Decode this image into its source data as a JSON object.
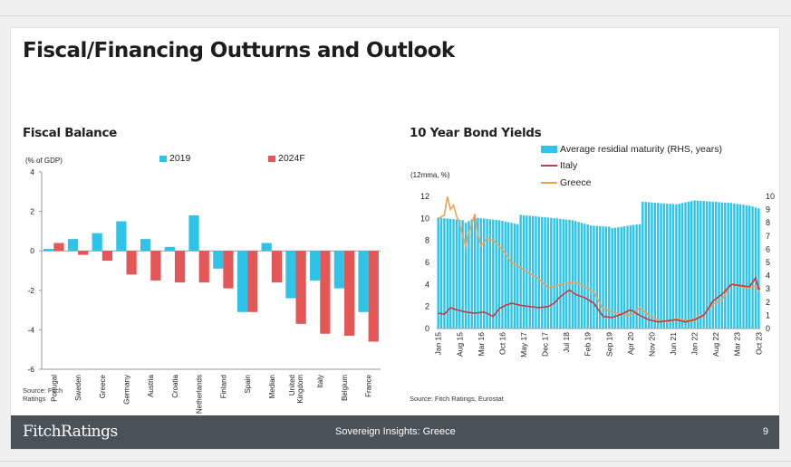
{
  "page": {
    "title": "Fiscal/Financing Outturns and Outlook"
  },
  "footer": {
    "brand": "FitchRatings",
    "doc_title": "Sovereign Insights: Greece",
    "page_number": "9"
  },
  "colors": {
    "blue": "#2ec4ea",
    "red": "#e55656",
    "orange": "#e8a35a",
    "dark_red": "#c8383d",
    "footer_bg": "#4b5257"
  },
  "chart_data": [
    {
      "type": "bar",
      "title": "Fiscal Balance",
      "unit_label": "(% of GDP)",
      "source": "Source: Fitch Ratings",
      "legend_position": "top",
      "categories": [
        "Portugal",
        "Sweden",
        "Greece",
        "Germany",
        "Austria",
        "Croatia",
        "Netherlands",
        "Finland",
        "Spain",
        "Median",
        "United Kingdom",
        "Italy",
        "Belgium",
        "France"
      ],
      "series": [
        {
          "name": "2019",
          "color": "#2ec4ea",
          "values": [
            0.1,
            0.6,
            0.9,
            1.5,
            0.6,
            0.2,
            1.8,
            -0.9,
            -3.1,
            0.4,
            -2.4,
            -1.5,
            -1.9,
            -3.1
          ]
        },
        {
          "name": "2024F",
          "color": "#e55656",
          "values": [
            0.4,
            -0.2,
            -0.5,
            -1.2,
            -1.5,
            -1.6,
            -1.6,
            -1.9,
            -3.1,
            -1.6,
            -3.7,
            -4.2,
            -4.3,
            -4.6
          ]
        }
      ],
      "ylim": [
        -6,
        4
      ],
      "yticks": [
        4,
        2,
        0,
        -2,
        -4,
        -6
      ]
    },
    {
      "type": "line",
      "title": "10 Year Bond Yields",
      "unit_label": "(12mma, %)",
      "source": "Source: Fitch Ratings, Eurostat",
      "legend_position": "top",
      "x_ticks": [
        "Jan 15",
        "Aug 15",
        "Mar 16",
        "Oct 16",
        "May 17",
        "Dec 17",
        "Jul 18",
        "Feb 19",
        "Sep 19",
        "Apr 20",
        "Nov 20",
        "Jun 21",
        "Jan 22",
        "Aug 22",
        "Mar 23",
        "Oct 23"
      ],
      "ylim": [
        0,
        12
      ],
      "yticks": [
        0,
        2,
        4,
        6,
        8,
        10,
        12
      ],
      "y2lim": [
        0,
        10
      ],
      "y2ticks": [
        0,
        1,
        2,
        3,
        4,
        5,
        6,
        7,
        8,
        9,
        10
      ],
      "bars": {
        "name": "Average residial maturity (RHS, years)",
        "color": "#2ec4ea",
        "axis": "right",
        "anchor_months": [
          0,
          8,
          9,
          12,
          20,
          26,
          27,
          36,
          44,
          50,
          56,
          57,
          60,
          66,
          67,
          72,
          78,
          84,
          90,
          96,
          102,
          105
        ],
        "anchor_values": [
          8.4,
          8.2,
          8.0,
          8.4,
          8.2,
          7.9,
          8.6,
          8.4,
          8.2,
          7.8,
          7.7,
          7.6,
          7.7,
          7.9,
          9.6,
          9.5,
          9.4,
          9.7,
          9.6,
          9.5,
          9.3,
          9.1
        ]
      },
      "series": [
        {
          "name": "Italy",
          "color": "#c8383d",
          "anchor_months": [
            0,
            2,
            4,
            6,
            9,
            12,
            15,
            18,
            20,
            22,
            24,
            27,
            30,
            33,
            36,
            38,
            40,
            42,
            43,
            45,
            48,
            51,
            54,
            57,
            60,
            63,
            66,
            69,
            72,
            75,
            78,
            81,
            84,
            87,
            88,
            90,
            93,
            96,
            99,
            102,
            104,
            105
          ],
          "values": [
            1.4,
            1.3,
            1.9,
            1.7,
            1.5,
            1.4,
            1.5,
            1.1,
            1.8,
            2.1,
            2.3,
            2.1,
            2.0,
            1.9,
            2.0,
            2.3,
            2.9,
            3.3,
            3.5,
            3.1,
            2.8,
            2.3,
            1.1,
            1.0,
            1.3,
            1.7,
            1.2,
            0.8,
            0.6,
            0.7,
            0.8,
            0.6,
            0.8,
            1.2,
            1.6,
            2.5,
            3.1,
            4.0,
            3.9,
            3.8,
            4.6,
            3.6
          ]
        },
        {
          "name": "Greece",
          "color": "#e8a35a",
          "anchor_months": [
            0,
            2,
            3,
            4,
            5,
            6,
            7,
            8,
            9,
            10,
            11,
            12,
            13,
            14,
            15,
            16,
            18,
            21,
            24,
            27,
            30,
            33,
            36,
            39,
            42,
            45,
            48,
            51,
            54,
            57,
            60,
            63,
            66,
            69,
            72,
            75,
            78,
            81,
            84,
            87,
            88,
            90,
            93,
            96,
            99,
            102,
            104,
            105
          ],
          "values": [
            10.0,
            10.3,
            12.0,
            10.8,
            11.2,
            10.2,
            9.6,
            8.4,
            7.5,
            8.8,
            9.5,
            10.4,
            8.5,
            7.5,
            7.8,
            8.2,
            8.0,
            7.2,
            6.0,
            5.5,
            5.0,
            4.5,
            3.7,
            3.9,
            4.1,
            4.2,
            3.8,
            3.3,
            1.8,
            1.5,
            1.3,
            1.2,
            1.9,
            1.2,
            0.8,
            0.6,
            0.9,
            0.7,
            0.9,
            1.3,
            1.6,
            2.2,
            2.6,
            4.1,
            3.8,
            3.7,
            3.9,
            3.4
          ]
        }
      ]
    }
  ]
}
